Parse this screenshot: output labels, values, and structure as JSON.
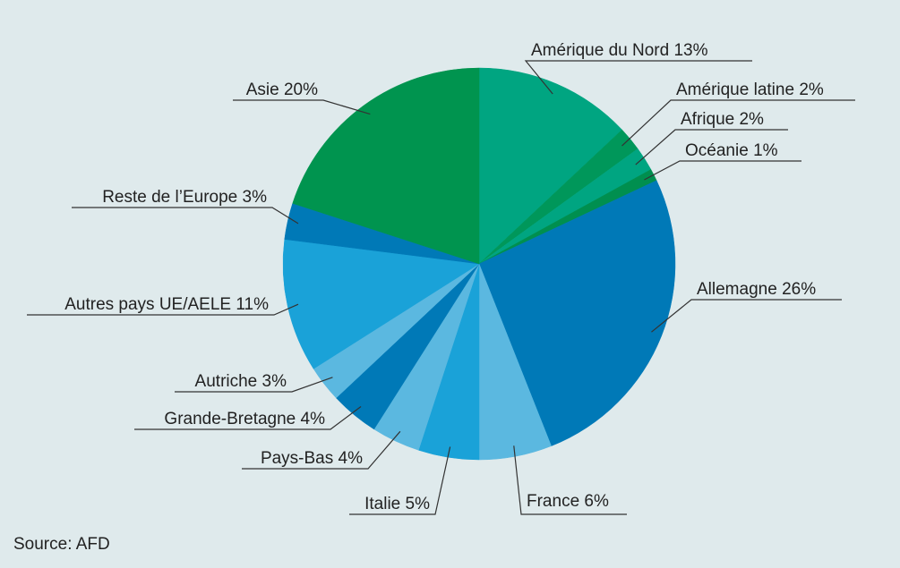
{
  "chart_data": {
    "type": "pie",
    "categories": [
      "Amérique du Nord",
      "Amérique latine",
      "Afrique",
      "Océanie",
      "Allemagne",
      "France",
      "Italie",
      "Pays-Bas",
      "Grande-Bretagne",
      "Autriche",
      "Autres pays UE/AELE",
      "Reste de l’Europe",
      "Asie"
    ],
    "values": [
      13,
      2,
      2,
      1,
      26,
      6,
      5,
      4,
      4,
      3,
      11,
      3,
      20
    ],
    "value_labels": [
      "13%",
      "2%",
      "2%",
      "1%",
      "26%",
      "6%",
      "5%",
      "4%",
      "4%",
      "3%",
      "11%",
      "3%",
      "20%"
    ],
    "colors": [
      "#00a581",
      "#00975a",
      "#00a581",
      "#008f4f",
      "#0079b7",
      "#5bb8e0",
      "#1aa2d8",
      "#5bb8e0",
      "#0079b7",
      "#5bb8e0",
      "#1aa2d8",
      "#0079b7",
      "#00944f"
    ],
    "source": "Source: AFD"
  }
}
